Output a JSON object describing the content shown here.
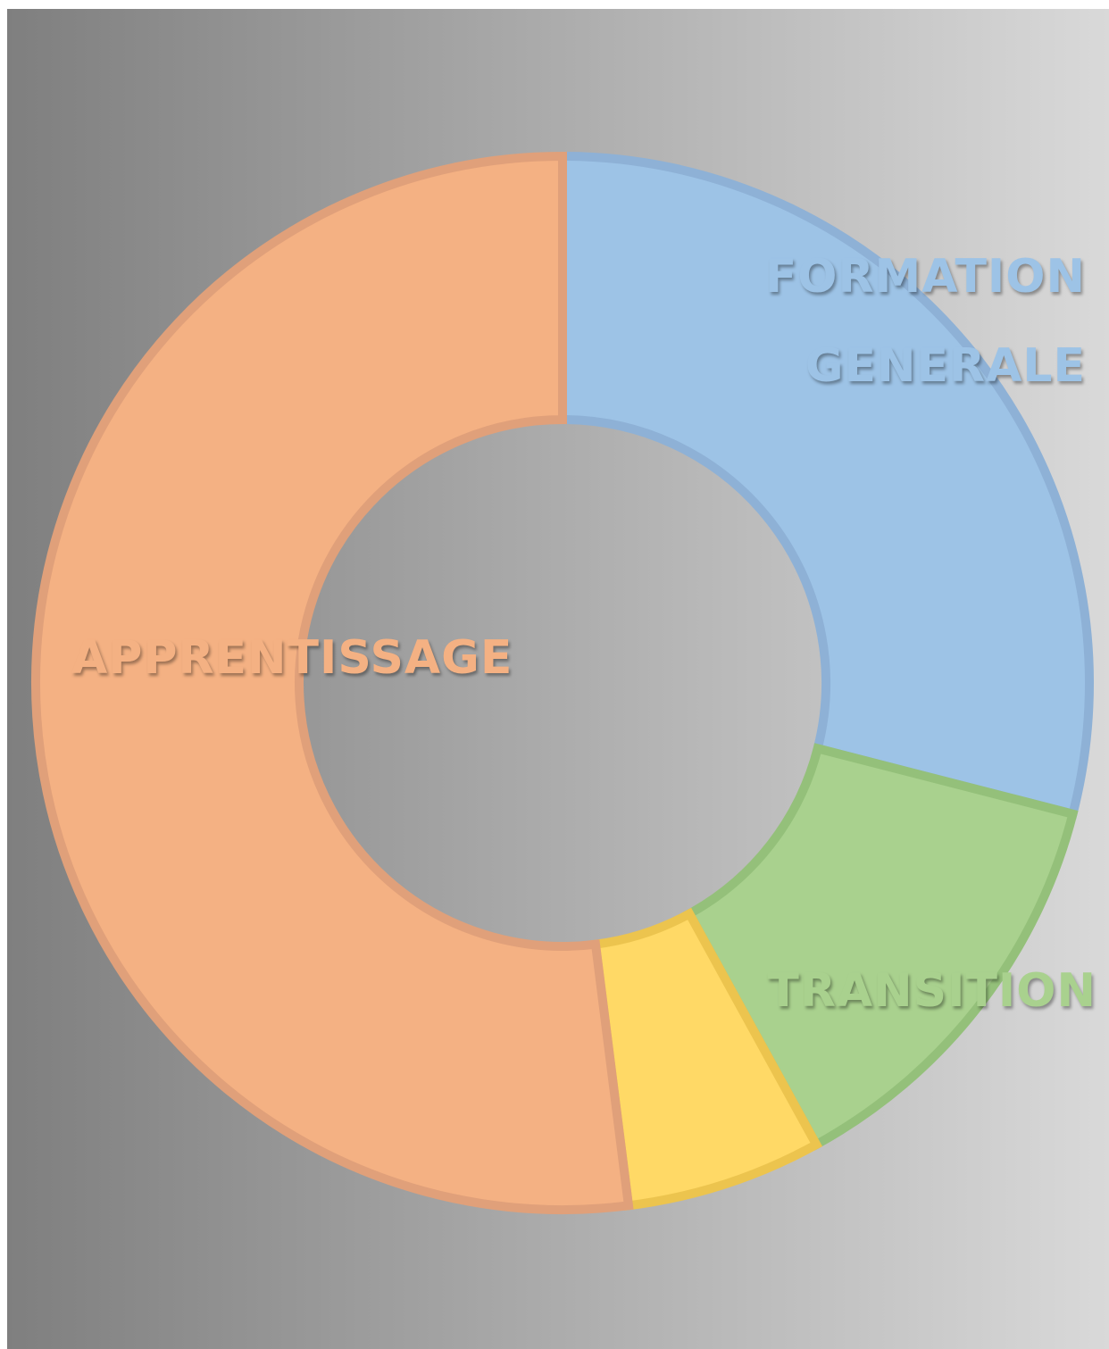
{
  "chart_data": {
    "type": "donut",
    "categories": [
      "FORMATION GENERALE",
      "TRANSITION",
      null,
      "APPRENTISSAGE"
    ],
    "values": [
      29,
      13,
      6,
      52
    ],
    "colors": [
      "#9dc3e6",
      "#a9d18e",
      "#ffd966",
      "#f4b183"
    ]
  }
}
